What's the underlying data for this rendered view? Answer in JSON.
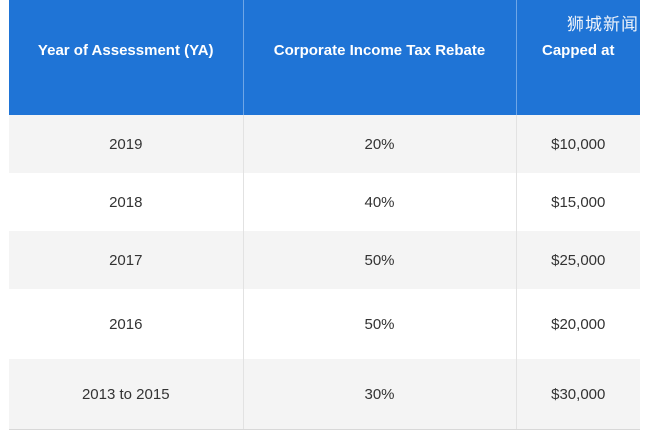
{
  "watermark": "狮城新闻",
  "table": {
    "headers": [
      "Year of Assessment (YA)",
      "Corporate Income Tax Rebate",
      "Capped at"
    ],
    "rows": [
      [
        "2019",
        "20%",
        "$10,000"
      ],
      [
        "2018",
        "40%",
        "$15,000"
      ],
      [
        "2017",
        "50%",
        "$25,000"
      ],
      [
        "2016",
        "50%",
        "$20,000"
      ],
      [
        "2013 to 2015",
        "30%",
        "$30,000"
      ]
    ]
  }
}
